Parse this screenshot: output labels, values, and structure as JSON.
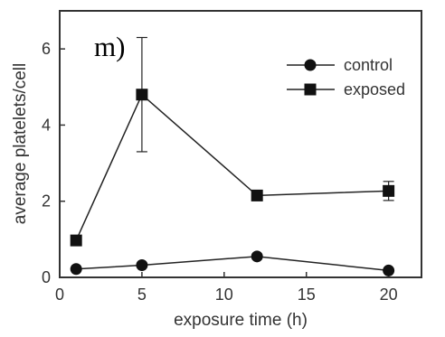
{
  "chart_data": {
    "type": "line",
    "panel_label": "m)",
    "xlabel": "exposure time (h)",
    "ylabel": "average platelets/cell",
    "xlim": [
      0,
      22
    ],
    "ylim": [
      0,
      7
    ],
    "xticks": [
      0,
      5,
      10,
      15,
      20
    ],
    "yticks": [
      0,
      2,
      4,
      6
    ],
    "legend_position": "top-right",
    "series": [
      {
        "name": "control",
        "marker": "circle",
        "x": [
          1,
          5,
          12,
          20
        ],
        "y": [
          0.22,
          0.32,
          0.55,
          0.18
        ],
        "yerr": [
          0,
          0,
          0,
          0
        ]
      },
      {
        "name": "exposed",
        "marker": "square",
        "x": [
          1,
          5,
          12,
          20
        ],
        "y": [
          0.97,
          4.8,
          2.15,
          2.27
        ],
        "yerr": [
          0,
          1.5,
          0,
          0.25
        ]
      }
    ]
  }
}
